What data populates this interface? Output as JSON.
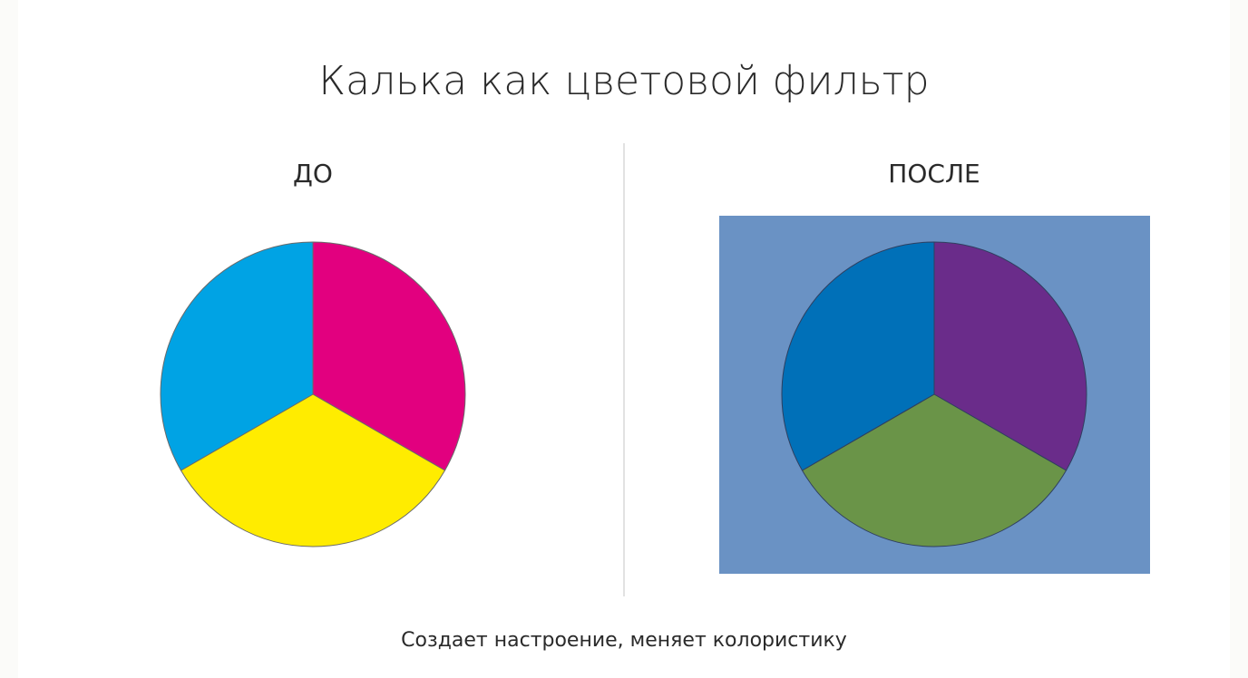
{
  "header": {
    "title": "Калька как цветовой фильтр"
  },
  "panels": [
    {
      "label": "ДО"
    },
    {
      "label": "ПОСЛЕ"
    }
  ],
  "caption": "Создает настроение, меняет колористику"
}
